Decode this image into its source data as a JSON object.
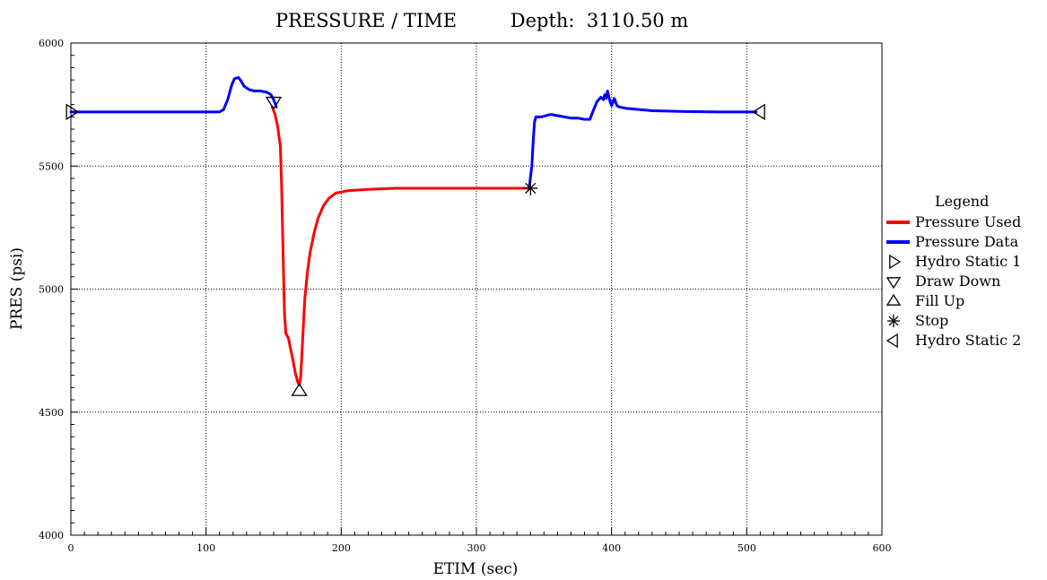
{
  "chart_data": {
    "type": "line",
    "title": "PRESSURE / TIME",
    "subtitle": "Depth:  3110.50 m",
    "xlabel": "ETIM (sec)",
    "ylabel": "PRES (psi)",
    "xlim": [
      0,
      600
    ],
    "ylim": [
      4000,
      6000
    ],
    "x_ticks": [
      0,
      100,
      200,
      300,
      400,
      500,
      600
    ],
    "y_ticks": [
      4000,
      4500,
      5000,
      5500,
      6000
    ],
    "grid": true,
    "legend_position": "right",
    "legend_title": "Legend",
    "colors": {
      "pressure_used": "#ff0000",
      "pressure_data": "#0000ff"
    },
    "series": [
      {
        "name": "Pressure Data",
        "color": "#0000ff",
        "segments": [
          [
            [
              0,
              5720
            ],
            [
              50,
              5720
            ],
            [
              100,
              5720
            ],
            [
              110,
              5720
            ],
            [
              113,
              5730
            ],
            [
              116,
              5770
            ],
            [
              119,
              5830
            ],
            [
              121,
              5855
            ],
            [
              124,
              5860
            ],
            [
              126,
              5845
            ],
            [
              128,
              5825
            ],
            [
              132,
              5810
            ],
            [
              136,
              5805
            ],
            [
              140,
              5805
            ],
            [
              145,
              5800
            ],
            [
              148,
              5790
            ],
            [
              150,
              5770
            ],
            [
              152,
              5740
            ]
          ],
          [
            [
              339,
              5410
            ],
            [
              341,
              5500
            ],
            [
              342,
              5600
            ],
            [
              343,
              5680
            ],
            [
              344,
              5700
            ],
            [
              348,
              5700
            ],
            [
              355,
              5710
            ],
            [
              360,
              5705
            ],
            [
              365,
              5700
            ],
            [
              370,
              5695
            ],
            [
              375,
              5695
            ],
            [
              380,
              5690
            ],
            [
              384,
              5690
            ],
            [
              386,
              5720
            ],
            [
              389,
              5760
            ],
            [
              392,
              5780
            ],
            [
              394,
              5770
            ],
            [
              395,
              5790
            ],
            [
              396,
              5775
            ],
            [
              397,
              5805
            ],
            [
              398,
              5780
            ],
            [
              399,
              5760
            ],
            [
              400,
              5745
            ],
            [
              402,
              5775
            ],
            [
              404,
              5745
            ],
            [
              406,
              5740
            ],
            [
              410,
              5735
            ],
            [
              420,
              5730
            ],
            [
              430,
              5725
            ],
            [
              450,
              5722
            ],
            [
              480,
              5720
            ],
            [
              507,
              5720
            ]
          ]
        ]
      },
      {
        "name": "Pressure Used",
        "color": "#ff0000",
        "segments": [
          [
            [
              149,
              5740
            ],
            [
              151,
              5710
            ],
            [
              153,
              5660
            ],
            [
              155,
              5580
            ],
            [
              156,
              5400
            ],
            [
              157,
              5150
            ],
            [
              158,
              4900
            ],
            [
              159,
              4820
            ],
            [
              161,
              4800
            ],
            [
              162,
              4770
            ],
            [
              164,
              4720
            ],
            [
              166,
              4660
            ],
            [
              168,
              4620
            ],
            [
              169,
              4610
            ],
            [
              170,
              4640
            ],
            [
              171,
              4740
            ],
            [
              172,
              4850
            ],
            [
              173,
              4960
            ],
            [
              175,
              5070
            ],
            [
              177,
              5150
            ],
            [
              180,
              5230
            ],
            [
              183,
              5290
            ],
            [
              187,
              5340
            ],
            [
              191,
              5370
            ],
            [
              196,
              5390
            ],
            [
              205,
              5400
            ],
            [
              220,
              5405
            ],
            [
              240,
              5410
            ],
            [
              280,
              5410
            ],
            [
              320,
              5410
            ],
            [
              339,
              5410
            ]
          ]
        ]
      }
    ],
    "markers": [
      {
        "name": "Hydro Static 1",
        "symbol": "triangle-right",
        "x": 0,
        "y": 5720
      },
      {
        "name": "Draw Down",
        "symbol": "triangle-down",
        "x": 150,
        "y": 5740
      },
      {
        "name": "Fill Up",
        "symbol": "triangle-up",
        "x": 169,
        "y": 4600
      },
      {
        "name": "Stop",
        "symbol": "asterisk",
        "x": 340,
        "y": 5410
      },
      {
        "name": "Hydro Static 2",
        "symbol": "triangle-left",
        "x": 510,
        "y": 5720
      }
    ],
    "legend": [
      {
        "label": "Pressure Used",
        "symbol": "line",
        "color": "#ff0000"
      },
      {
        "label": "Pressure Data",
        "symbol": "line",
        "color": "#0000ff"
      },
      {
        "label": "Hydro Static 1",
        "symbol": "triangle-right"
      },
      {
        "label": "Draw Down",
        "symbol": "triangle-down"
      },
      {
        "label": "Fill Up",
        "symbol": "triangle-up"
      },
      {
        "label": "Stop",
        "symbol": "asterisk"
      },
      {
        "label": "Hydro Static 2",
        "symbol": "triangle-left"
      }
    ]
  }
}
